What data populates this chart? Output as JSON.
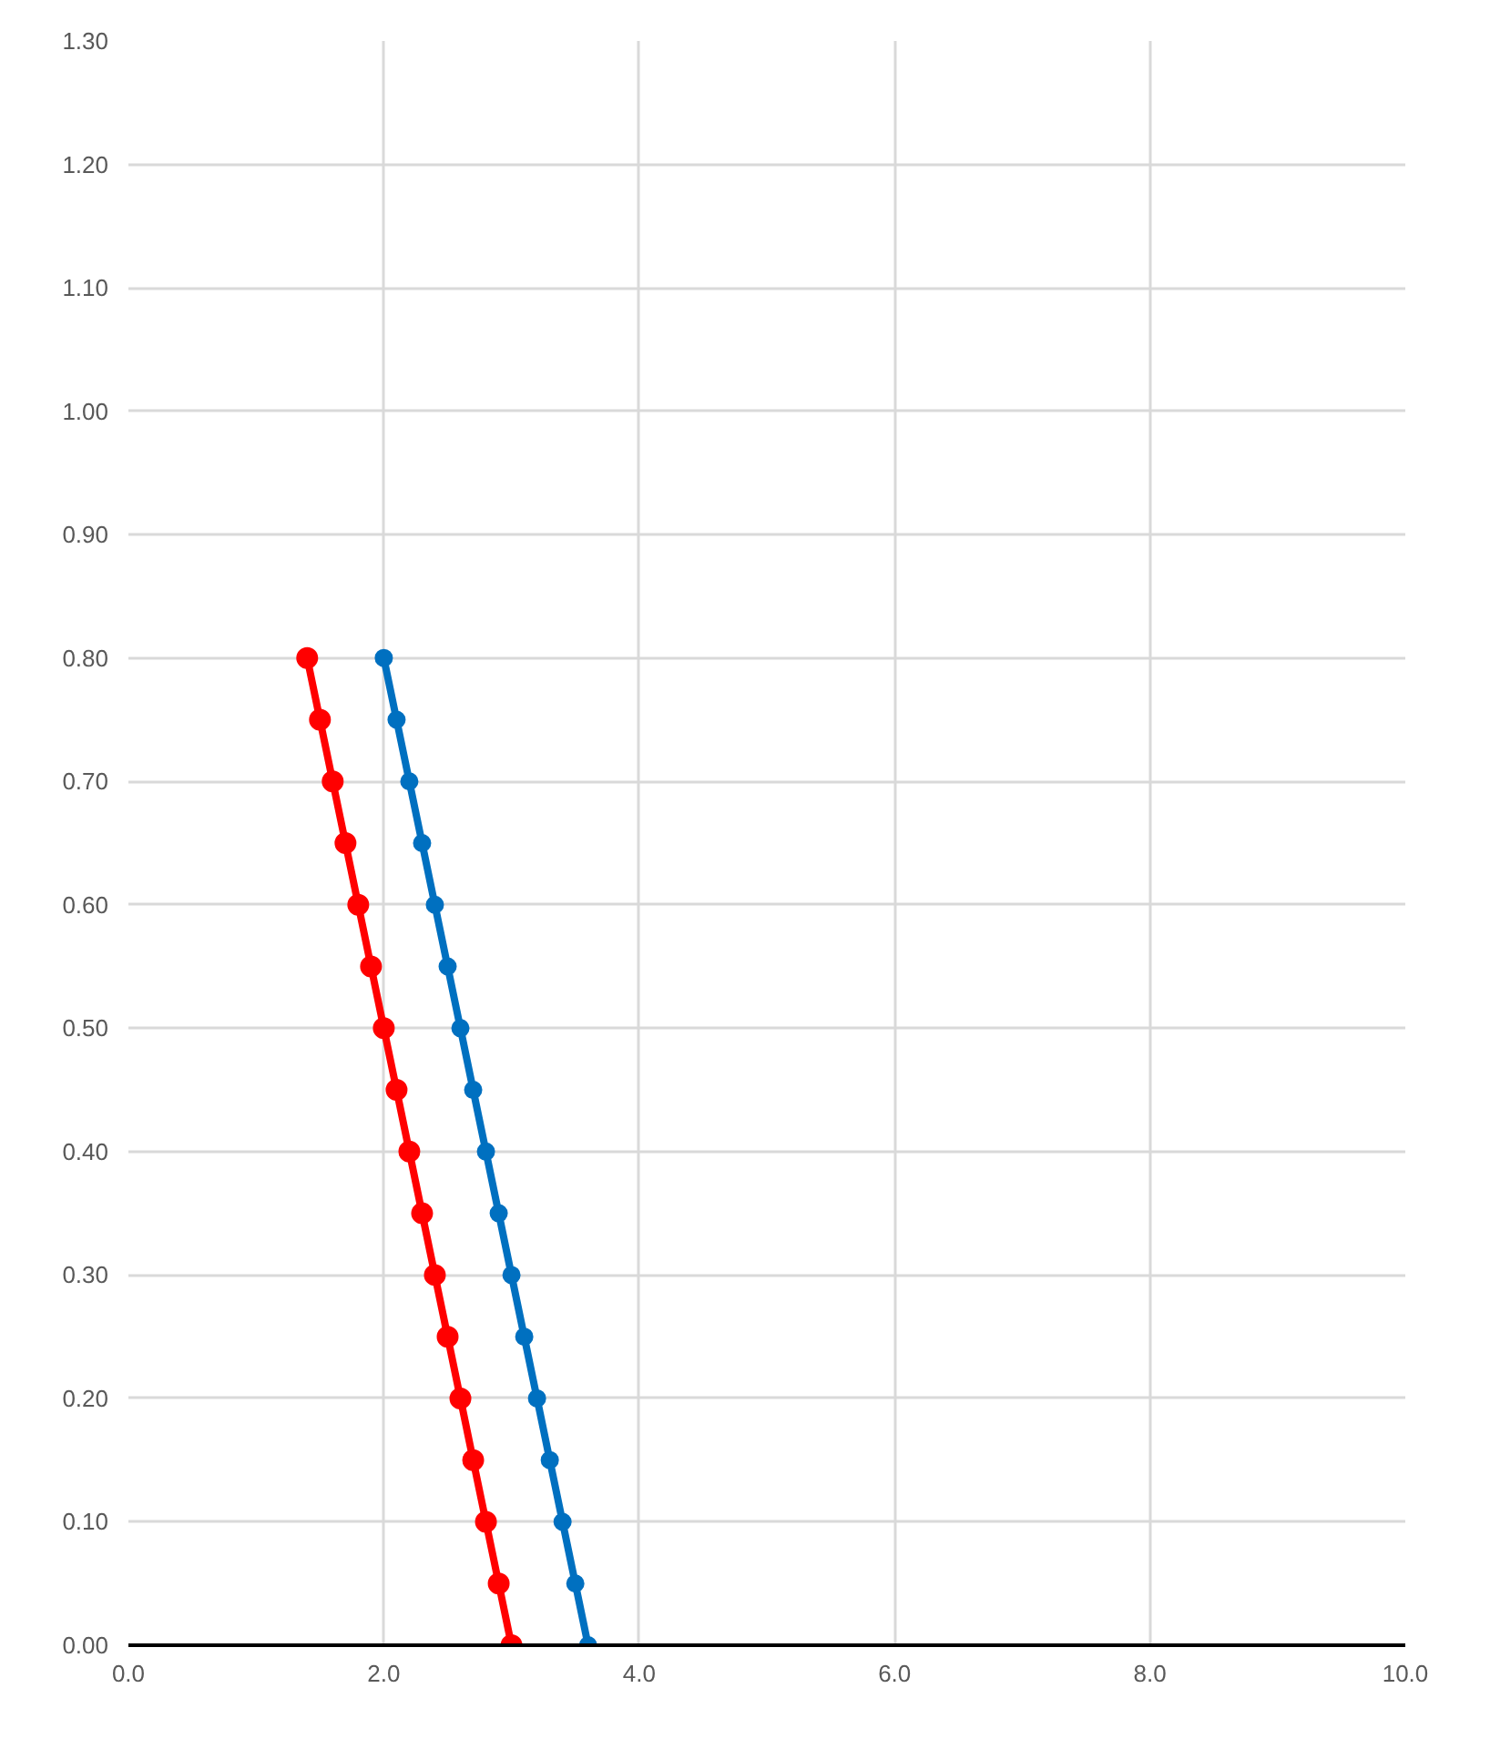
{
  "chart_data": {
    "type": "line",
    "series": [
      {
        "color": "#ff0000",
        "x": [
          1.4,
          1.5,
          1.6,
          1.7,
          1.8,
          1.9,
          2.0,
          2.1,
          2.2,
          2.3,
          2.4,
          2.5,
          2.6,
          2.7,
          2.8,
          2.9,
          3.0
        ],
        "values": [
          0.8,
          0.75,
          0.7,
          0.65,
          0.6,
          0.55,
          0.5,
          0.45,
          0.4,
          0.35,
          0.3,
          0.25,
          0.2,
          0.15,
          0.1,
          0.05,
          0.0
        ]
      },
      {
        "color": "#0070c0",
        "x": [
          2.0,
          2.1,
          2.2,
          2.3,
          2.4,
          2.5,
          2.6,
          2.7,
          2.8,
          2.9,
          3.0,
          3.1,
          3.2,
          3.3,
          3.4,
          3.5,
          3.6
        ],
        "values": [
          0.8,
          0.75,
          0.7,
          0.65,
          0.6,
          0.55,
          0.5,
          0.45,
          0.4,
          0.35,
          0.3,
          0.25,
          0.2,
          0.15,
          0.1,
          0.05,
          0.0
        ]
      }
    ],
    "xlim": [
      0,
      10
    ],
    "ylim": [
      0,
      1.3
    ],
    "xticks": [
      {
        "value": 0,
        "label": "0.0"
      },
      {
        "value": 2,
        "label": "2.0"
      },
      {
        "value": 4,
        "label": "4.0"
      },
      {
        "value": 6,
        "label": "6.0"
      },
      {
        "value": 8,
        "label": "8.0"
      },
      {
        "value": 10,
        "label": "10.0"
      }
    ],
    "yticks": [
      {
        "value": 0,
        "label": "0.00"
      },
      {
        "value": 0.1,
        "label": "0.10"
      },
      {
        "value": 0.2,
        "label": "0.20"
      },
      {
        "value": 0.3,
        "label": "0.30"
      },
      {
        "value": 0.4,
        "label": "0.40"
      },
      {
        "value": 0.5,
        "label": "0.50"
      },
      {
        "value": 0.6,
        "label": "0.60"
      },
      {
        "value": 0.7,
        "label": "0.70"
      },
      {
        "value": 0.8,
        "label": "0.80"
      },
      {
        "value": 0.9,
        "label": "0.90"
      },
      {
        "value": 1.0,
        "label": "1.00"
      },
      {
        "value": 1.1,
        "label": "1.10"
      },
      {
        "value": 1.2,
        "label": "1.20"
      },
      {
        "value": 1.3,
        "label": "1.30"
      }
    ],
    "grid": true,
    "marker": "circle",
    "line_style": "solid"
  }
}
